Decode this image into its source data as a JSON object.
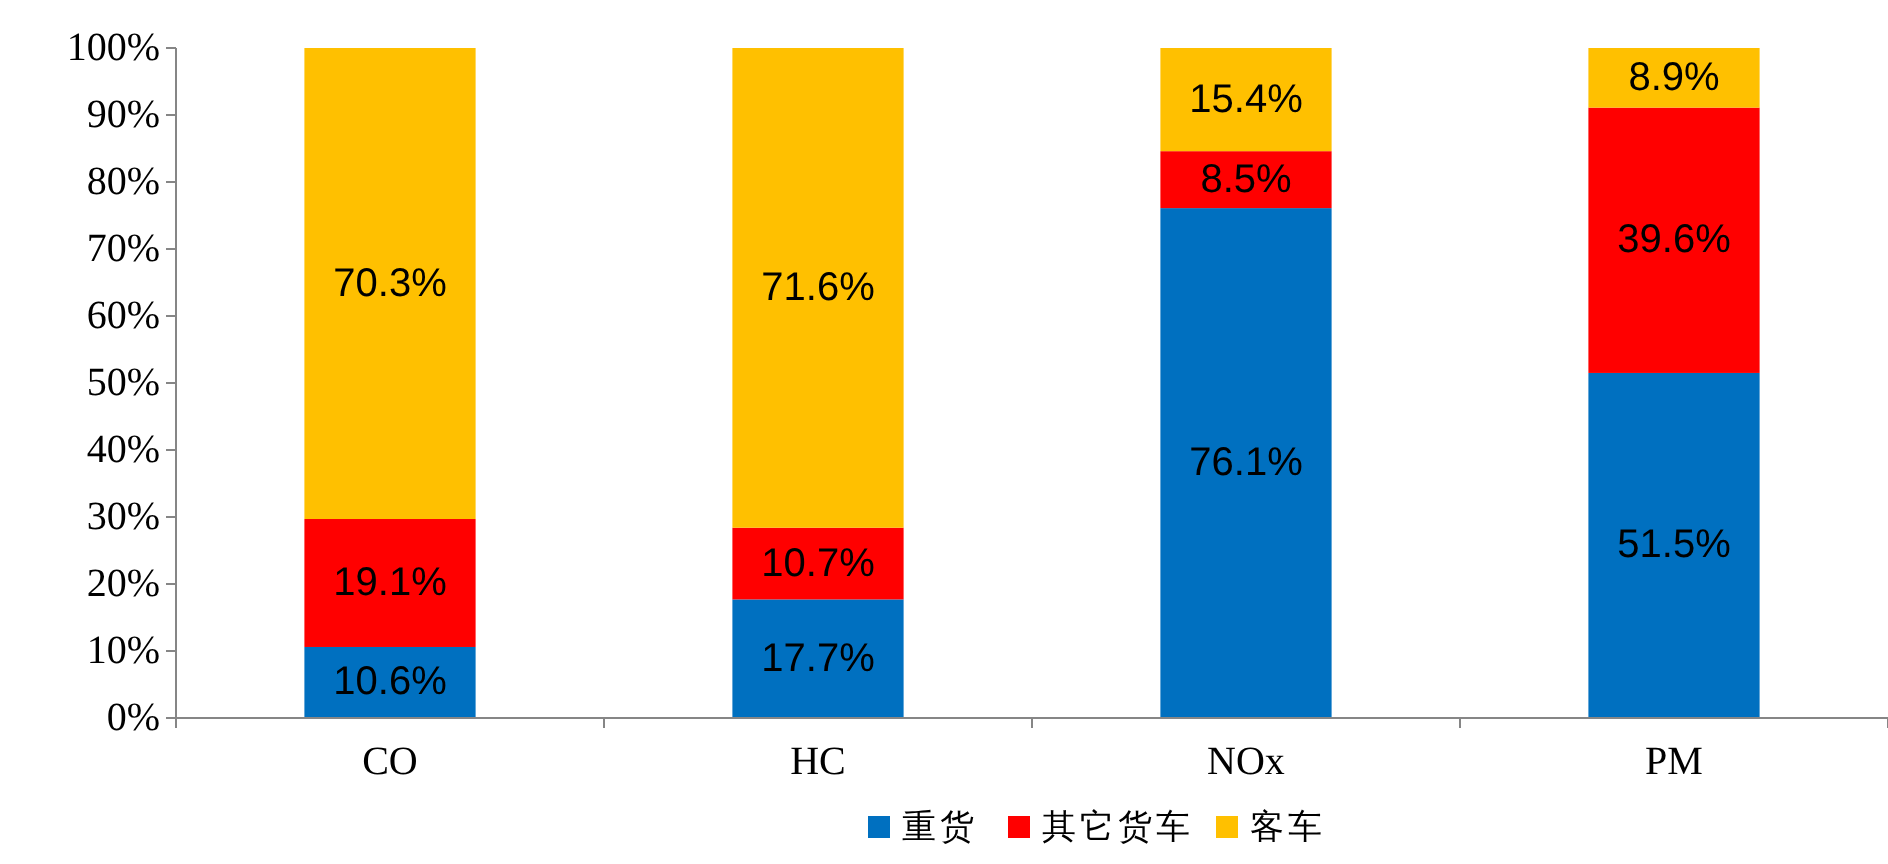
{
  "chart_data": {
    "type": "bar",
    "stacked": true,
    "categories": [
      "CO",
      "HC",
      "NOx",
      "PM"
    ],
    "series": [
      {
        "name": "重货",
        "color": "#0070c0",
        "values": [
          10.6,
          17.7,
          76.1,
          51.5
        ],
        "value_labels": [
          "10.6%",
          "17.7%",
          "76.1%",
          "51.5%"
        ]
      },
      {
        "name": "其它货车",
        "color": "#ff0000",
        "values": [
          19.1,
          10.7,
          8.5,
          39.6
        ],
        "value_labels": [
          "19.1%",
          "10.7%",
          "8.5%",
          "39.6%"
        ]
      },
      {
        "name": "客车",
        "color": "#ffc000",
        "values": [
          70.3,
          71.6,
          15.4,
          8.9
        ],
        "value_labels": [
          "70.3%",
          "71.6%",
          "15.4%",
          "8.9%"
        ]
      }
    ],
    "ylim": [
      0,
      100
    ],
    "yticks": [
      {
        "value": 0,
        "label": "0%"
      },
      {
        "value": 10,
        "label": "10%"
      },
      {
        "value": 20,
        "label": "20%"
      },
      {
        "value": 30,
        "label": "30%"
      },
      {
        "value": 40,
        "label": "40%"
      },
      {
        "value": 50,
        "label": "50%"
      },
      {
        "value": 60,
        "label": "60%"
      },
      {
        "value": 70,
        "label": "70%"
      },
      {
        "value": 80,
        "label": "80%"
      },
      {
        "value": 90,
        "label": "90%"
      },
      {
        "value": 100,
        "label": "100%"
      }
    ],
    "grid": false,
    "legend": "bottom"
  }
}
